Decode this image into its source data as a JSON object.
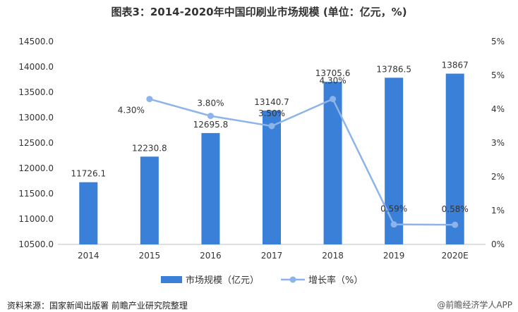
{
  "title": "图表3：2014-2020年中国印刷业市场规模 (单位：亿元，%)",
  "footer": "资料来源：国家新闻出版署 前瞻产业研究院整理",
  "watermark": "@前瞻经济学人APP",
  "chart_data": {
    "type": "bar+line",
    "categories": [
      "2014",
      "2015",
      "2016",
      "2017",
      "2018",
      "2019",
      "2020E"
    ],
    "series": [
      {
        "name": "市场规模（亿元）",
        "type": "bar",
        "axis": "left",
        "color": "#3a7fd8",
        "values": [
          11726.1,
          12230.8,
          12695.8,
          13140.7,
          13705.6,
          13786.5,
          13867
        ],
        "labels": [
          "11726.1",
          "12230.8",
          "12695.8",
          "13140.7",
          "13705.6",
          "13786.5",
          "13867"
        ]
      },
      {
        "name": "增长率（%）",
        "type": "line",
        "axis": "right",
        "color": "#8db4ea",
        "x": [
          "2015",
          "2016",
          "2017",
          "2018",
          "2019",
          "2020E"
        ],
        "values": [
          4.3,
          3.8,
          3.5,
          4.3,
          0.59,
          0.58
        ],
        "labels": [
          "4.30%",
          "3.80%",
          "3.50%",
          "4.30%",
          "0.59%",
          "0.58%"
        ]
      }
    ],
    "y_left": {
      "ylim": [
        10500,
        14500
      ],
      "ticks": [
        "10500.0",
        "11000.0",
        "11500.0",
        "12000.0",
        "12500.0",
        "13000.0",
        "13500.0",
        "14000.0",
        "14500.0"
      ]
    },
    "y_right": {
      "ylim": [
        0,
        5
      ],
      "ticks": [
        "0%",
        "1%",
        "2%",
        "3%",
        "4%",
        "5%",
        "5%"
      ]
    },
    "grid": false,
    "legend": "bottom-center"
  }
}
